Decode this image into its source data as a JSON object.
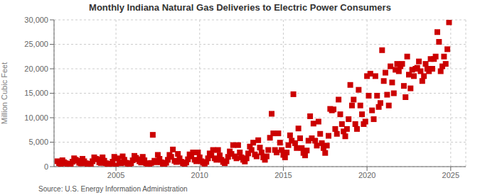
{
  "chart_data": {
    "type": "scatter",
    "title": "Monthly Indiana Natural Gas Deliveries to Electric Power Consumers",
    "ylabel": "Million Cubic Feet",
    "annotations": [
      "Source: U.S. Energy Information Administration"
    ],
    "color": "#cc0000",
    "marker": "square",
    "grid": true,
    "xlim": [
      2001.3,
      2025.9
    ],
    "xticks": [
      2005,
      2010,
      2015,
      2020,
      2025
    ],
    "ylim": [
      0,
      30000
    ],
    "yticks": [
      0,
      {
        "value": 5000,
        "label": "5,000"
      },
      {
        "value": 10000,
        "label": "10,000"
      },
      {
        "value": 15000,
        "label": "15,000"
      },
      {
        "value": 20000,
        "label": "20,000"
      },
      {
        "value": 25000,
        "label": "25,000"
      },
      {
        "value": 30000,
        "label": "30,000"
      }
    ],
    "x": [
      2001.5,
      2001.6,
      2001.7,
      2001.8,
      2001.9,
      2002.0,
      2002.1,
      2002.2,
      2002.3,
      2002.4,
      2002.5,
      2002.6,
      2002.7,
      2002.8,
      2002.9,
      2003.0,
      2003.1,
      2003.2,
      2003.3,
      2003.4,
      2003.5,
      2003.6,
      2003.7,
      2003.8,
      2003.9,
      2004.0,
      2004.1,
      2004.2,
      2004.3,
      2004.4,
      2004.5,
      2004.6,
      2004.7,
      2004.8,
      2004.9,
      2005.0,
      2005.1,
      2005.2,
      2005.3,
      2005.4,
      2005.5,
      2005.6,
      2005.7,
      2005.8,
      2005.9,
      2006.0,
      2006.1,
      2006.2,
      2006.3,
      2006.4,
      2006.5,
      2006.6,
      2006.7,
      2006.8,
      2006.9,
      2007.0,
      2007.1,
      2007.2,
      2007.3,
      2007.4,
      2007.5,
      2007.6,
      2007.7,
      2007.8,
      2007.9,
      2008.0,
      2008.1,
      2008.2,
      2008.3,
      2008.4,
      2008.5,
      2008.6,
      2008.7,
      2008.8,
      2008.9,
      2009.0,
      2009.1,
      2009.2,
      2009.3,
      2009.4,
      2009.5,
      2009.6,
      2009.7,
      2009.8,
      2009.9,
      2010.0,
      2010.1,
      2010.2,
      2010.3,
      2010.4,
      2010.5,
      2010.6,
      2010.7,
      2010.8,
      2010.9,
      2011.0,
      2011.1,
      2011.2,
      2011.3,
      2011.4,
      2011.5,
      2011.6,
      2011.7,
      2011.8,
      2011.9,
      2012.0,
      2012.1,
      2012.2,
      2012.3,
      2012.4,
      2012.5,
      2012.6,
      2012.7,
      2012.8,
      2012.9,
      2013.0,
      2013.1,
      2013.2,
      2013.3,
      2013.4,
      2013.5,
      2013.6,
      2013.7,
      2013.8,
      2013.9,
      2014.0,
      2014.1,
      2014.2,
      2014.3,
      2014.4,
      2014.5,
      2014.6,
      2014.7,
      2014.8,
      2014.9,
      2015.0,
      2015.1,
      2015.2,
      2015.3,
      2015.4,
      2015.5,
      2015.6,
      2015.7,
      2015.8,
      2015.9,
      2016.0,
      2016.1,
      2016.2,
      2016.3,
      2016.4,
      2016.5,
      2016.6,
      2016.7,
      2016.8,
      2016.9,
      2017.0,
      2017.1,
      2017.2,
      2017.3,
      2017.4,
      2017.5,
      2017.6,
      2017.7,
      2017.8,
      2017.9,
      2018.0,
      2018.1,
      2018.2,
      2018.3,
      2018.4,
      2018.5,
      2018.6,
      2018.7,
      2018.8,
      2018.9,
      2019.0,
      2019.1,
      2019.2,
      2019.3,
      2019.4,
      2019.5,
      2019.6,
      2019.7,
      2019.8,
      2019.9,
      2020.0,
      2020.1,
      2020.2,
      2020.3,
      2020.4,
      2020.5,
      2020.6,
      2020.7,
      2020.8,
      2020.9,
      2021.0,
      2021.1,
      2021.2,
      2021.3,
      2021.4,
      2021.5,
      2021.6,
      2021.7,
      2021.8,
      2021.9,
      2022.0,
      2022.1,
      2022.2,
      2022.3,
      2022.4,
      2022.5,
      2022.6,
      2022.7,
      2022.8,
      2022.9,
      2023.0,
      2023.1,
      2023.2,
      2023.3,
      2023.4,
      2023.5,
      2023.6,
      2023.7,
      2023.8,
      2023.9,
      2024.0,
      2024.1,
      2024.2,
      2024.3,
      2024.4,
      2024.5,
      2024.6,
      2024.7,
      2024.8,
      2024.9
    ],
    "values": [
      1100,
      700,
      500,
      1300,
      900,
      700,
      500,
      350,
      600,
      1000,
      1700,
      1400,
      1200,
      800,
      650,
      1600,
      1100,
      700,
      500,
      350,
      600,
      1100,
      1900,
      1600,
      1500,
      900,
      750,
      1900,
      1200,
      700,
      500,
      350,
      600,
      1000,
      2000,
      200,
      1700,
      900,
      700,
      2100,
      1400,
      800,
      600,
      400,
      700,
      1300,
      2200,
      1800,
      1500,
      1100,
      850,
      2000,
      1300,
      700,
      550,
      450,
      750,
      6500,
      1200,
      900,
      2400,
      1600,
      900,
      600,
      500,
      800,
      1400,
      2400,
      2000,
      3500,
      1200,
      950,
      2600,
      1700,
      1000,
      700,
      500,
      850,
      1500,
      2500,
      2100,
      2900,
      1400,
      1100,
      2900,
      1900,
      1100,
      800,
      600,
      950,
      1700,
      2700,
      2300,
      3400,
      1700,
      1400,
      3400,
      2300,
      1400,
      950,
      700,
      1100,
      2000,
      3100,
      2600,
      4400,
      2100,
      1700,
      4400,
      2900,
      1900,
      1400,
      1050,
      1700,
      2700,
      4100,
      3400,
      4900,
      2500,
      2100,
      5400,
      3900,
      2900,
      1900,
      1400,
      2100,
      3400,
      5900,
      10800,
      6800,
      3400,
      2900,
      6800,
      4900,
      3400,
      2400,
      1900,
      2900,
      4400,
      6400,
      5300,
      14800,
      4800,
      3800,
      7800,
      5800,
      3800,
      2800,
      2300,
      3300,
      5300,
      10300,
      5800,
      8800,
      5300,
      4300,
      9200,
      6700,
      4800,
      3800,
      2800,
      4300,
      6300,
      11800,
      11500,
      11700,
      7700,
      6700,
      13700,
      10700,
      8700,
      7200,
      6200,
      7700,
      9700,
      16700,
      12500,
      13700,
      8700,
      7700,
      15700,
      12500,
      10700,
      8700,
      9200,
      18500,
      14500,
      19000,
      11500,
      9700,
      18500,
      14500,
      12200,
      13000,
      23800,
      17500,
      19200,
      14700,
      12500,
      20500,
      17200,
      15000,
      19800,
      21000,
      19500,
      20500,
      21000,
      16500,
      14200,
      22500,
      18800,
      16000,
      19800,
      18500,
      20000,
      20200,
      21500,
      19500,
      17500,
      18500,
      21000,
      20000,
      19500,
      22000,
      20000,
      22000,
      22500,
      27500,
      25500,
      19500,
      20500,
      22500,
      21000,
      24000,
      29500
    ]
  }
}
